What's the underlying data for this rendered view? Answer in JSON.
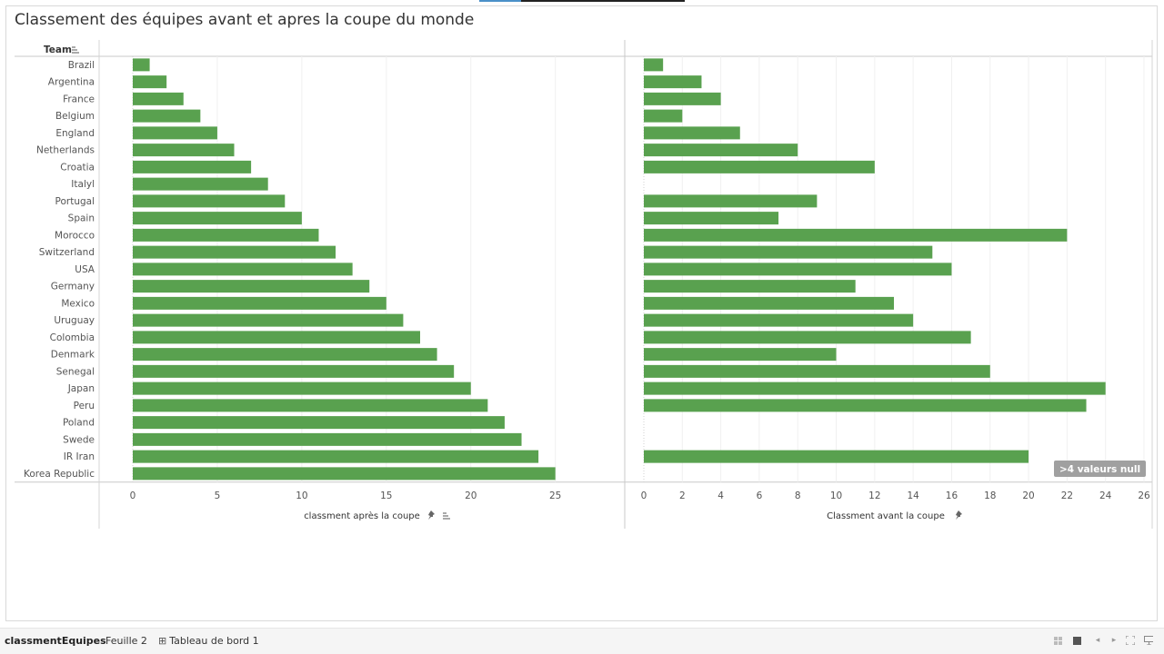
{
  "title": "Classement des équipes avant et apres la coupe du monde",
  "chart_data": {
    "type": "bar",
    "orientation": "horizontal",
    "row_header": "Team",
    "categories": [
      "Brazil",
      "Argentina",
      "France",
      "Belgium",
      "England",
      "Netherlands",
      "Croatia",
      "Italyl",
      "Portugal",
      "Spain",
      "Morocco",
      "Switzerland",
      "USA",
      "Germany",
      "Mexico",
      "Uruguay",
      "Colombia",
      "Denmark",
      "Senegal",
      "Japan",
      "Peru",
      "Poland",
      "Swede",
      "IR Iran",
      "Korea Republic"
    ],
    "panels": [
      {
        "xlabel": "classment après la coupe",
        "xlim": [
          0,
          27
        ],
        "ticks": [
          0,
          5,
          10,
          15,
          20,
          25
        ],
        "values": [
          1,
          2,
          3,
          4,
          5,
          6,
          7,
          8,
          9,
          10,
          11,
          12,
          13,
          14,
          15,
          16,
          17,
          18,
          19,
          20,
          21,
          22,
          23,
          24,
          25
        ]
      },
      {
        "xlabel": "Classment avant la coupe",
        "xlim": [
          0,
          26
        ],
        "ticks": [
          0,
          2,
          4,
          6,
          8,
          10,
          12,
          14,
          16,
          18,
          20,
          22,
          24,
          26
        ],
        "values": [
          1,
          3,
          4,
          2,
          5,
          8,
          12,
          null,
          9,
          7,
          22,
          15,
          16,
          11,
          13,
          14,
          17,
          10,
          18,
          24,
          23,
          null,
          null,
          20,
          null
        ],
        "null_badge": ">4 valeurs null"
      }
    ],
    "bar_color": "#59a14f",
    "grid": true,
    "legend": "none"
  },
  "tabs": [
    {
      "label": "classmentEquipes",
      "active": true
    },
    {
      "label": "Feuille 2",
      "active": false
    },
    {
      "label": "Tableau de bord 1",
      "active": false,
      "icon": "dashboard-icon"
    }
  ],
  "controls": [
    {
      "icon": "grid-view-icon"
    },
    {
      "icon": "filmstrip-icon"
    },
    {
      "icon": "prev-icon"
    },
    {
      "icon": "next-icon"
    },
    {
      "icon": "fullscreen-icon"
    },
    {
      "icon": "presentation-icon"
    }
  ]
}
